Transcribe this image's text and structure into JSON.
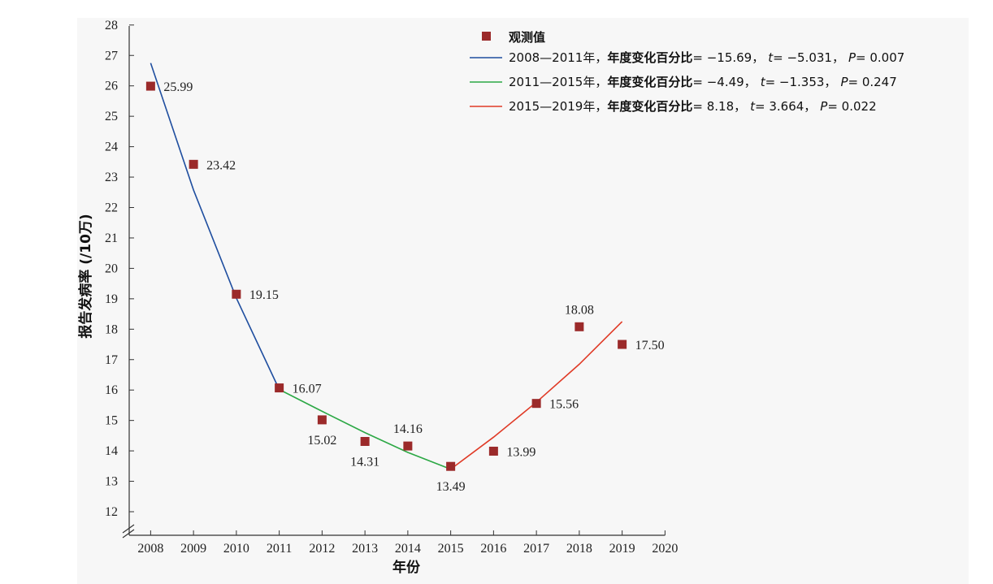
{
  "chart_data": {
    "type": "line",
    "ylabel": "报告发病率 (/10万)",
    "xlabel": "年份",
    "x_ticks": [
      "2008",
      "2009",
      "2010",
      "2011",
      "2012",
      "2013",
      "2014",
      "2015",
      "2016",
      "2017",
      "2018",
      "2019",
      "2020"
    ],
    "y_ticks": [
      "12",
      "13",
      "14",
      "15",
      "16",
      "17",
      "18",
      "19",
      "20",
      "21",
      "22",
      "23",
      "24",
      "25",
      "26",
      "27",
      "28"
    ],
    "xlim": [
      2007.5,
      2020
    ],
    "ylim": [
      12,
      28
    ],
    "axis_break": true,
    "grid": false,
    "legend_position": "top-right",
    "observed": {
      "name": "观测值",
      "color": "#9b2a2a",
      "points": [
        {
          "x": 2008,
          "y": 25.99,
          "label": "25.99",
          "pos": "right"
        },
        {
          "x": 2009,
          "y": 23.42,
          "label": "23.42",
          "pos": "right"
        },
        {
          "x": 2010,
          "y": 19.15,
          "label": "19.15",
          "pos": "right"
        },
        {
          "x": 2011,
          "y": 16.07,
          "label": "16.07",
          "pos": "right"
        },
        {
          "x": 2012,
          "y": 15.02,
          "label": "15.02",
          "pos": "below"
        },
        {
          "x": 2013,
          "y": 14.31,
          "label": "14.31",
          "pos": "below"
        },
        {
          "x": 2014,
          "y": 14.16,
          "label": "14.16",
          "pos": "above"
        },
        {
          "x": 2015,
          "y": 13.49,
          "label": "13.49",
          "pos": "below"
        },
        {
          "x": 2016,
          "y": 13.99,
          "label": "13.99",
          "pos": "right"
        },
        {
          "x": 2017,
          "y": 15.56,
          "label": "15.56",
          "pos": "right"
        },
        {
          "x": 2018,
          "y": 18.08,
          "label": "18.08",
          "pos": "above"
        },
        {
          "x": 2019,
          "y": 17.5,
          "label": "17.50",
          "pos": "right"
        }
      ]
    },
    "fits": [
      {
        "name": "2008—2011年，年度变化百分比= −15.69，t = −5.031，P = 0.007",
        "legend_plain": "2008—2011年，",
        "legend_bold": "年度变化百分比",
        "legend_stats": "= −15.69，",
        "t_value": "= −5.031，",
        "p_value": "= 0.007",
        "color": "#1f4e9f",
        "x": [
          2008,
          2009,
          2010,
          2011
        ],
        "y": [
          26.75,
          22.58,
          19.02,
          16.02
        ]
      },
      {
        "name": "2011—2015年，年度变化百分比= −4.49，t = −1.353，P = 0.247",
        "legend_plain": "2011—2015年，",
        "legend_bold": "年度变化百分比",
        "legend_stats": "= −4.49，",
        "t_value": "= −1.353，",
        "p_value": "= 0.247",
        "color": "#2ca845",
        "x": [
          2011,
          2012,
          2013,
          2014,
          2015
        ],
        "y": [
          16.02,
          15.3,
          14.6,
          13.95,
          13.4
        ]
      },
      {
        "name": "2015—2019年，年度变化百分比= 8.18，t = 3.664，P = 0.022",
        "legend_plain": "2015—2019年，",
        "legend_bold": "年度变化百分比",
        "legend_stats": "= 8.18，",
        "t_value": "= 3.664，",
        "p_value": "= 0.022",
        "color": "#e03a26",
        "x": [
          2015,
          2016,
          2017,
          2018,
          2019
        ],
        "y": [
          13.4,
          14.45,
          15.6,
          16.85,
          18.25
        ]
      }
    ],
    "legend_t": "t",
    "legend_p": "P"
  }
}
